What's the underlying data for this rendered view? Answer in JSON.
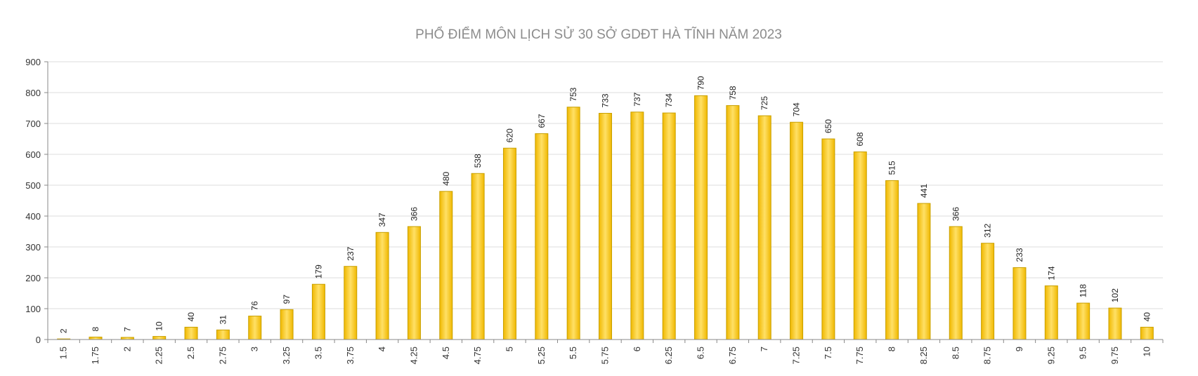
{
  "chart_data": {
    "type": "bar",
    "title": "PHỔ ĐIỂM MÔN LỊCH SỬ 30 SỞ GDĐT HÀ TĨNH NĂM 2023",
    "xlabel": "",
    "ylabel": "",
    "ylim": [
      0,
      900
    ],
    "yticks": [
      "0",
      "100",
      "200",
      "300",
      "400",
      "500",
      "600",
      "700",
      "800",
      "900"
    ],
    "grid": true,
    "legend": "none",
    "categories": [
      "1.5",
      "1.75",
      "2",
      "2.25",
      "2.5",
      "2.75",
      "3",
      "3.25",
      "3.5",
      "3.75",
      "4",
      "4.25",
      "4.5",
      "4.75",
      "5",
      "5.25",
      "5.5",
      "5.75",
      "6",
      "6.25",
      "6.5",
      "6.75",
      "7",
      "7.25",
      "7.5",
      "7.75",
      "8",
      "8.25",
      "8.5",
      "8.75",
      "9",
      "9.25",
      "9.5",
      "9.75",
      "10"
    ],
    "values": [
      2,
      8,
      7,
      10,
      40,
      31,
      76,
      97,
      179,
      237,
      347,
      366,
      480,
      538,
      620,
      667,
      753,
      733,
      737,
      734,
      790,
      758,
      725,
      704,
      650,
      608,
      515,
      441,
      366,
      312,
      233,
      174,
      118,
      102,
      40
    ],
    "colors": {
      "bar_top": "#ffe066",
      "bar_bottom": "#f0b800",
      "bar_stroke": "#c8a000"
    }
  }
}
